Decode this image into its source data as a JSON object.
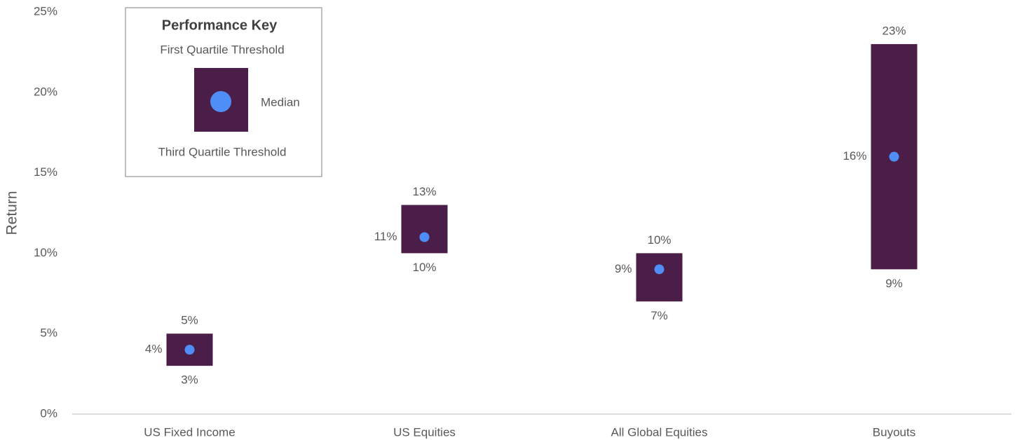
{
  "chart_data": {
    "type": "range",
    "y_label": "Return",
    "legend_title": "Performance Key",
    "categories": [
      "US Fixed Income",
      "US Equities",
      "All Global Equities",
      "Buyouts"
    ],
    "series": [
      {
        "name": "First Quartile Threshold",
        "color": "#4a1e48",
        "values": [
          5,
          13,
          10,
          23
        ],
        "value_labels": [
          "5%",
          "13%",
          "10%",
          "23%"
        ]
      },
      {
        "name": "Third Quartile Threshold",
        "color": "#4a1e48",
        "values": [
          3,
          10,
          7,
          9
        ],
        "value_labels": [
          "3%",
          "10%",
          "7%",
          "9%"
        ]
      },
      {
        "name": "Median",
        "color": "#4f8ef7",
        "values": [
          4,
          11,
          9,
          16
        ],
        "value_labels": [
          "4%",
          "11%",
          "9%",
          "16%"
        ]
      }
    ],
    "ylim": [
      0,
      25
    ],
    "yticks": [
      {
        "value": 0,
        "label": "0%"
      },
      {
        "value": 5,
        "label": "5%"
      },
      {
        "value": 10,
        "label": "10%"
      },
      {
        "value": 15,
        "label": "15%"
      },
      {
        "value": 20,
        "label": "20%"
      },
      {
        "value": 25,
        "label": "25%"
      }
    ]
  }
}
